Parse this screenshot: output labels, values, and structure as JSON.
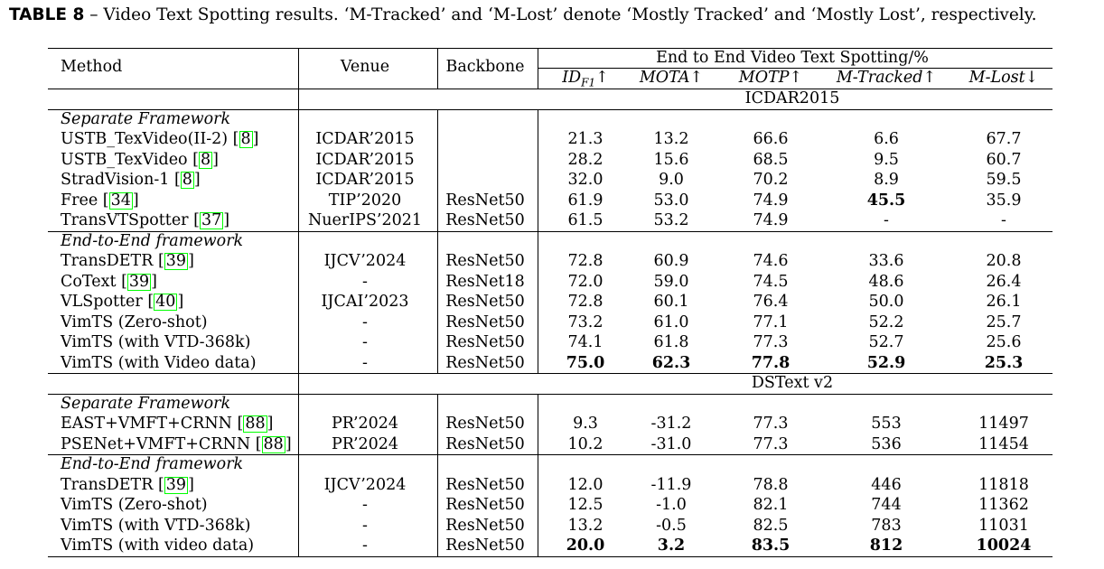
{
  "caption": {
    "label": "TABLE 8",
    "text": " – Video Text Spotting results. ‘M-Tracked’ and ‘M-Lost’ denote ‘Mostly Tracked’ and ‘Mostly Lost’, respectively."
  },
  "header": {
    "method": "Method",
    "venue": "Venue",
    "backbone": "Backbone",
    "group": "End to End Video Text Spotting/%",
    "metrics": [
      "ID",
      "F1",
      "↑",
      "MOTA↑",
      "MOTP↑",
      "M-Tracked↑",
      "M-Lost↓"
    ]
  },
  "sections": [
    {
      "dataset": "ICDAR2015",
      "groups": [
        {
          "title": "Separate Framework",
          "rows": [
            {
              "method": "USTB_TexVideo(II-2) ",
              "ref": "8",
              "venue": "ICDAR’2015",
              "backbone": "",
              "vals": [
                "21.3",
                "13.2",
                "66.6",
                "6.6",
                "67.7"
              ],
              "bold": [
                false,
                false,
                false,
                false,
                false
              ]
            },
            {
              "method": "USTB_TexVideo ",
              "ref": "8",
              "venue": "ICDAR’2015",
              "backbone": "",
              "vals": [
                "28.2",
                "15.6",
                "68.5",
                "9.5",
                "60.7"
              ],
              "bold": [
                false,
                false,
                false,
                false,
                false
              ]
            },
            {
              "method": "StradVision-1 ",
              "ref": "8",
              "venue": "ICDAR’2015",
              "backbone": "",
              "vals": [
                "32.0",
                "9.0",
                "70.2",
                "8.9",
                "59.5"
              ],
              "bold": [
                false,
                false,
                false,
                false,
                false
              ]
            },
            {
              "method": "Free ",
              "ref": "34",
              "venue": "TIP’2020",
              "backbone": "ResNet50",
              "vals": [
                "61.9",
                "53.0",
                "74.9",
                "45.5",
                "35.9"
              ],
              "bold": [
                false,
                false,
                false,
                true,
                false
              ]
            },
            {
              "method": "TransVTSpotter ",
              "ref": "37",
              "venue": "NuerIPS’2021",
              "backbone": "ResNet50",
              "vals": [
                "61.5",
                "53.2",
                "74.9",
                "-",
                "-"
              ],
              "bold": [
                false,
                false,
                false,
                false,
                false
              ]
            }
          ]
        },
        {
          "title": "End-to-End framework",
          "rows": [
            {
              "method": "TransDETR ",
              "ref": "39",
              "venue": "IJCV’2024",
              "backbone": "ResNet50",
              "vals": [
                "72.8",
                "60.9",
                "74.6",
                "33.6",
                "20.8"
              ],
              "bold": [
                false,
                false,
                false,
                false,
                false
              ]
            },
            {
              "method": "CoText ",
              "ref": "39",
              "venue": "-",
              "backbone": "ResNet18",
              "vals": [
                "72.0",
                "59.0",
                "74.5",
                "48.6",
                "26.4"
              ],
              "bold": [
                false,
                false,
                false,
                false,
                false
              ]
            },
            {
              "method": "VLSpotter ",
              "ref": "40",
              "venue": "IJCAI’2023",
              "backbone": "ResNet50",
              "vals": [
                "72.8",
                "60.1",
                "76.4",
                "50.0",
                "26.1"
              ],
              "bold": [
                false,
                false,
                false,
                false,
                false
              ]
            },
            {
              "method": "VimTS (Zero-shot)",
              "ref": "",
              "venue": "-",
              "backbone": "ResNet50",
              "vals": [
                "73.2",
                "61.0",
                "77.1",
                "52.2",
                "25.7"
              ],
              "bold": [
                false,
                false,
                false,
                false,
                false
              ]
            },
            {
              "method": "VimTS (with VTD-368k)",
              "ref": "",
              "venue": "-",
              "backbone": "ResNet50",
              "vals": [
                "74.1",
                "61.8",
                "77.3",
                "52.7",
                "25.6"
              ],
              "bold": [
                false,
                false,
                false,
                false,
                false
              ]
            },
            {
              "method": "VimTS (with Video data)",
              "ref": "",
              "venue": "-",
              "backbone": "ResNet50",
              "vals": [
                "75.0",
                "62.3",
                "77.8",
                "52.9",
                "25.3"
              ],
              "bold": [
                true,
                true,
                true,
                true,
                true
              ]
            }
          ]
        }
      ]
    },
    {
      "dataset": "DSText v2",
      "groups": [
        {
          "title": "Separate Framework",
          "rows": [
            {
              "method": "EAST+VMFT+CRNN ",
              "ref": "88",
              "venue": "PR’2024",
              "backbone": "ResNet50",
              "vals": [
                "9.3",
                "-31.2",
                "77.3",
                "553",
                "11497"
              ],
              "bold": [
                false,
                false,
                false,
                false,
                false
              ]
            },
            {
              "method": "PSENet+VMFT+CRNN ",
              "ref": "88",
              "venue": "PR’2024",
              "backbone": "ResNet50",
              "vals": [
                "10.2",
                "-31.0",
                "77.3",
                "536",
                "11454"
              ],
              "bold": [
                false,
                false,
                false,
                false,
                false
              ]
            }
          ]
        },
        {
          "title": "End-to-End framework",
          "rows": [
            {
              "method": "TransDETR ",
              "ref": "39",
              "venue": "IJCV’2024",
              "backbone": "ResNet50",
              "vals": [
                "12.0",
                "-11.9",
                "78.8",
                "446",
                "11818"
              ],
              "bold": [
                false,
                false,
                false,
                false,
                false
              ]
            },
            {
              "method": "VimTS (Zero-shot)",
              "ref": "",
              "venue": "-",
              "backbone": "ResNet50",
              "vals": [
                "12.5",
                "-1.0",
                "82.1",
                "744",
                "11362"
              ],
              "bold": [
                false,
                false,
                false,
                false,
                false
              ]
            },
            {
              "method": "VimTS (with VTD-368k)",
              "ref": "",
              "venue": "-",
              "backbone": "ResNet50",
              "vals": [
                "13.2",
                "-0.5",
                "82.5",
                "783",
                "11031"
              ],
              "bold": [
                false,
                false,
                false,
                false,
                false
              ]
            },
            {
              "method": "VimTS (with video data)",
              "ref": "",
              "venue": "-",
              "backbone": "ResNet50",
              "vals": [
                "20.0",
                "3.2",
                "83.5",
                "812",
                "10024"
              ],
              "bold": [
                true,
                true,
                true,
                true,
                true
              ]
            }
          ]
        }
      ]
    }
  ]
}
